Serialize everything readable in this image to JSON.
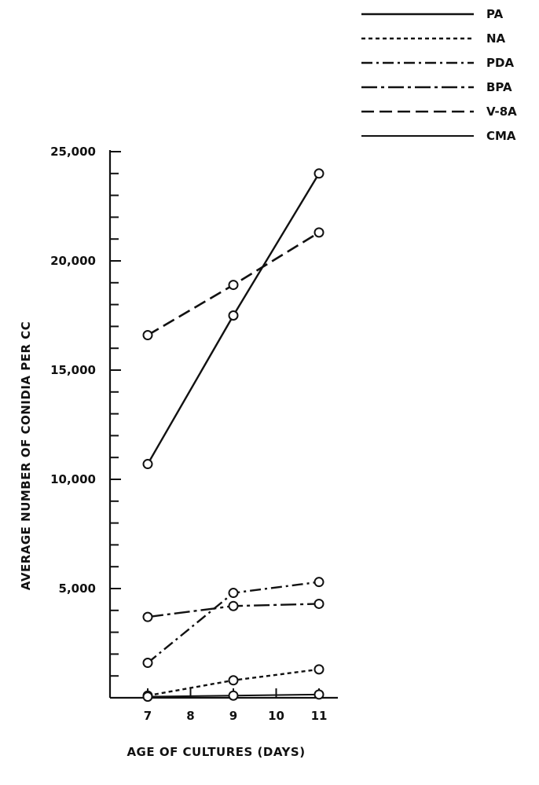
{
  "chart_data": {
    "type": "line",
    "title": "",
    "xlabel": "AGE OF CULTURES (DAYS)",
    "ylabel": "AVERAGE NUMBER OF CONIDIA PER CC",
    "x_ticks": [
      "7",
      "8",
      "9",
      "10",
      "11"
    ],
    "y_ticks": [
      "5,000",
      "10,000",
      "15,000",
      "20,000",
      "25,000"
    ],
    "xlim": [
      7,
      11
    ],
    "ylim": [
      0,
      25000
    ],
    "grid": false,
    "legend_position": "top-right",
    "series": [
      {
        "name": "PA",
        "style": "solid",
        "x": [
          7,
          9,
          11
        ],
        "y": [
          10700,
          17500,
          24000
        ]
      },
      {
        "name": "NA",
        "style": "dotted",
        "x": [
          7,
          9,
          11
        ],
        "y": [
          100,
          800,
          1300
        ]
      },
      {
        "name": "PDA",
        "style": "dash-dot",
        "x": [
          7,
          9,
          11
        ],
        "y": [
          1600,
          4800,
          5300
        ]
      },
      {
        "name": "BPA",
        "style": "long-dash-dot",
        "x": [
          7,
          9,
          11
        ],
        "y": [
          3700,
          4200,
          4300
        ]
      },
      {
        "name": "V-8A",
        "style": "dashed",
        "x": [
          7,
          9,
          11
        ],
        "y": [
          16600,
          18900,
          21300
        ]
      },
      {
        "name": "CMA",
        "style": "solid-thin",
        "x": [
          7,
          9,
          11
        ],
        "y": [
          50,
          100,
          150
        ]
      }
    ]
  }
}
